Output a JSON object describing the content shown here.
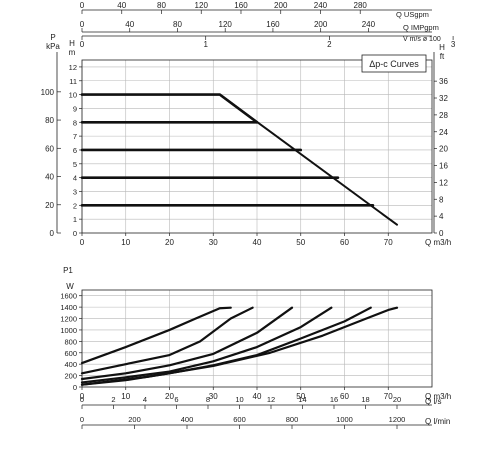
{
  "legend_box": {
    "label": "Δp-c Curves"
  },
  "chart_data": [
    {
      "type": "line",
      "title": "",
      "legend": "Δp-c Curves",
      "legend_position": "top-right",
      "grid": true,
      "xlabel": "Q m3/h",
      "xlim": [
        0,
        80
      ],
      "x_ticks": [
        0,
        10,
        20,
        30,
        40,
        50,
        60,
        70
      ],
      "y_axes": {
        "kpa": {
          "label": "kPa",
          "title": "P",
          "ticks": [
            0,
            20,
            40,
            60,
            80,
            100
          ]
        },
        "m": {
          "label": "m",
          "title": "H",
          "range": [
            0,
            12.5
          ],
          "ticks": [
            0,
            1,
            2,
            3,
            4,
            5,
            6,
            7,
            8,
            9,
            10,
            11,
            12
          ]
        },
        "ft": {
          "label": "ft",
          "title": "H",
          "ticks": [
            0,
            4,
            8,
            12,
            16,
            20,
            24,
            28,
            32,
            36
          ]
        }
      },
      "top_axes": [
        {
          "label": "Q USgpm",
          "ticks": [
            0,
            40,
            80,
            120,
            160,
            200,
            240,
            280
          ]
        },
        {
          "label": "Q IMPgpm",
          "ticks": [
            0,
            40,
            80,
            120,
            160,
            200,
            240
          ]
        },
        {
          "label": "V m/s ø 100",
          "ticks": [
            0,
            1,
            2,
            3,
            4,
            5
          ]
        }
      ],
      "series": [
        {
          "values": [
            [
              0,
              10
            ],
            [
              31.5,
              10
            ],
            [
              40,
              8
            ]
          ]
        },
        {
          "values": [
            [
              0,
              8
            ],
            [
              40,
              8
            ]
          ]
        },
        {
          "values": [
            [
              0,
              6
            ],
            [
              50,
              6
            ]
          ]
        },
        {
          "values": [
            [
              0,
              4
            ],
            [
              58.5,
              4
            ]
          ]
        },
        {
          "values": [
            [
              0,
              2
            ],
            [
              66.5,
              2
            ]
          ]
        },
        {
          "values": [
            [
              31.5,
              10
            ],
            [
              72,
              0.6
            ]
          ]
        }
      ]
    },
    {
      "type": "line",
      "title": "",
      "grid": true,
      "ylabel": "W",
      "y_title": "P1",
      "ylim": [
        0,
        1700
      ],
      "y_ticks": [
        0,
        200,
        400,
        600,
        800,
        1000,
        1200,
        1400,
        1600
      ],
      "xlabel": "Q m3/h",
      "xlim": [
        0,
        80
      ],
      "x_ticks": [
        0,
        10,
        20,
        30,
        40,
        50,
        60,
        70
      ],
      "bottom_axes": [
        {
          "label": "Q l/s",
          "ticks": [
            0,
            2,
            4,
            6,
            8,
            10,
            12,
            14,
            16,
            18,
            20
          ]
        },
        {
          "label": "Q l/min",
          "ticks": [
            0,
            200,
            400,
            600,
            800,
            1000,
            1200
          ]
        }
      ],
      "series": [
        {
          "values": [
            [
              0,
              420
            ],
            [
              10,
              700
            ],
            [
              20,
              1000
            ],
            [
              26,
              1200
            ],
            [
              31.5,
              1380
            ],
            [
              34,
              1390
            ]
          ]
        },
        {
          "values": [
            [
              0,
              240
            ],
            [
              10,
              400
            ],
            [
              20,
              560
            ],
            [
              27,
              800
            ],
            [
              34,
              1200
            ],
            [
              39,
              1390
            ]
          ]
        },
        {
          "values": [
            [
              0,
              140
            ],
            [
              10,
              240
            ],
            [
              20,
              380
            ],
            [
              30,
              580
            ],
            [
              40,
              950
            ],
            [
              48,
              1390
            ]
          ]
        },
        {
          "values": [
            [
              0,
              80
            ],
            [
              10,
              170
            ],
            [
              20,
              270
            ],
            [
              30,
              450
            ],
            [
              40,
              700
            ],
            [
              50,
              1050
            ],
            [
              57,
              1390
            ]
          ]
        },
        {
          "values": [
            [
              0,
              40
            ],
            [
              10,
              120
            ],
            [
              20,
              240
            ],
            [
              30,
              380
            ],
            [
              40,
              560
            ],
            [
              50,
              850
            ],
            [
              60,
              1150
            ],
            [
              66,
              1390
            ]
          ]
        },
        {
          "values": [
            [
              0,
              40
            ],
            [
              15,
              180
            ],
            [
              30,
              370
            ],
            [
              43,
              600
            ],
            [
              55,
              900
            ],
            [
              65,
              1200
            ],
            [
              70,
              1350
            ],
            [
              72,
              1390
            ]
          ]
        }
      ]
    }
  ]
}
